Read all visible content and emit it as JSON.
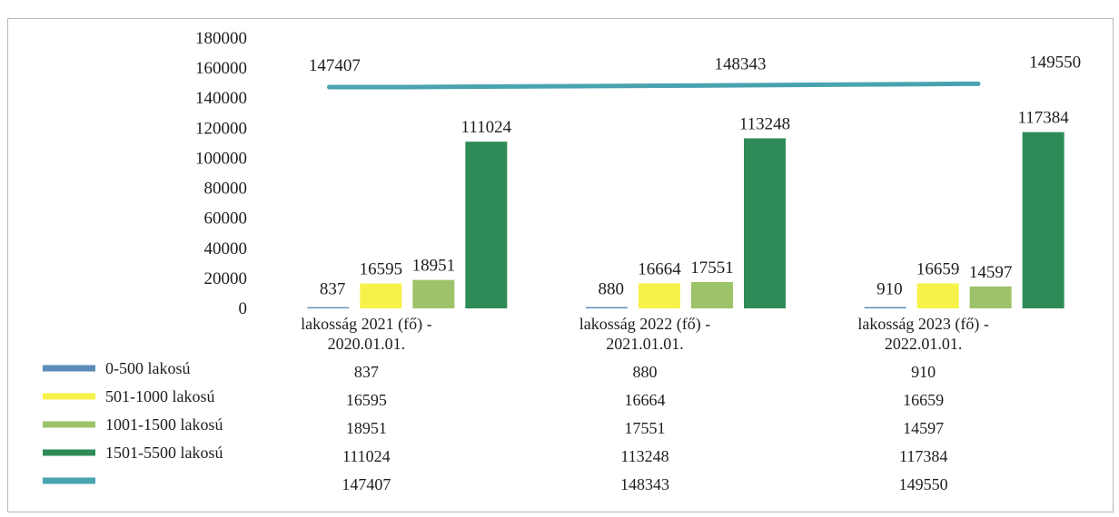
{
  "chart_data": {
    "type": "bar",
    "categories": [
      [
        "lakosság 2021 (fő) -",
        "2020.01.01."
      ],
      [
        "lakosság 2022 (fő) -",
        "2021.01.01."
      ],
      [
        "lakosság 2023 (fő) -",
        "2022.01.01."
      ]
    ],
    "series": [
      {
        "name": "0-500 lakosú",
        "kind": "bar",
        "color": "#5b8db8",
        "values": [
          837,
          880,
          910
        ]
      },
      {
        "name": "501-1000 lakosú",
        "kind": "bar",
        "color": "#f6f24a",
        "values": [
          16595,
          16664,
          16659
        ]
      },
      {
        "name": "1001-1500 lakosú",
        "kind": "bar",
        "color": "#9cc36a",
        "values": [
          18951,
          17551,
          14597
        ]
      },
      {
        "name": "1501-5500 lakosú",
        "kind": "bar",
        "color": "#2e8b57",
        "values": [
          111024,
          113248,
          117384
        ]
      },
      {
        "name": "",
        "kind": "line",
        "color": "#4aa3b0",
        "values": [
          147407,
          148343,
          149550
        ]
      }
    ],
    "yticks": [
      0,
      20000,
      40000,
      60000,
      80000,
      100000,
      120000,
      140000,
      160000,
      180000
    ],
    "ylim": [
      0,
      180000
    ],
    "grid": false,
    "data_table": true,
    "legend": "data table (left of table rows)"
  }
}
